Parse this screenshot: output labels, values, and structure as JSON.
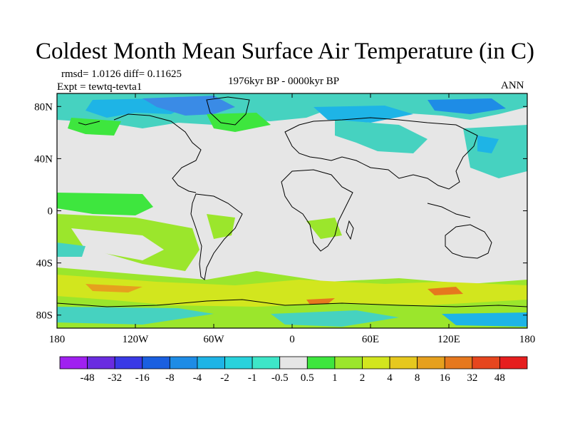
{
  "title": "Coldest Month Mean Surface Air Temperature (in C)",
  "stats": {
    "rmsd_diff": "rmsd= 1.0126 diff= 0.11625",
    "expt": "Expt = tewtq-tevta1",
    "period": "1976kyr BP - 0000kyr BP",
    "season": "ANN"
  },
  "map": {
    "projection": "cylindrical-equidistant",
    "lon_range": [
      -180,
      180
    ],
    "lat_range": [
      -90,
      90
    ],
    "lon_ticks": [
      "180",
      "120W",
      "60W",
      "0",
      "60E",
      "120E",
      "180"
    ],
    "lat_ticks": [
      "80N",
      "40N",
      "0",
      "40S",
      "80S"
    ],
    "background_color": "#e6e6e6",
    "coastline_color": "#000000"
  },
  "colorbar": {
    "labels": [
      "-48",
      "-32",
      "-16",
      "-8",
      "-4",
      "-2",
      "-1",
      "-0.5",
      "0.5",
      "1",
      "2",
      "4",
      "8",
      "16",
      "32",
      "48"
    ],
    "colors": [
      "#a020f0",
      "#6a2ce0",
      "#3a3ae6",
      "#1a5fe0",
      "#1e8ce6",
      "#1eb4e6",
      "#28d2dc",
      "#3ee6c8",
      "#e6e6e6",
      "#3ee63e",
      "#9be62c",
      "#d2e61e",
      "#e6c81e",
      "#e6a01e",
      "#e6781e",
      "#e6461e",
      "#e61e1e"
    ]
  }
}
